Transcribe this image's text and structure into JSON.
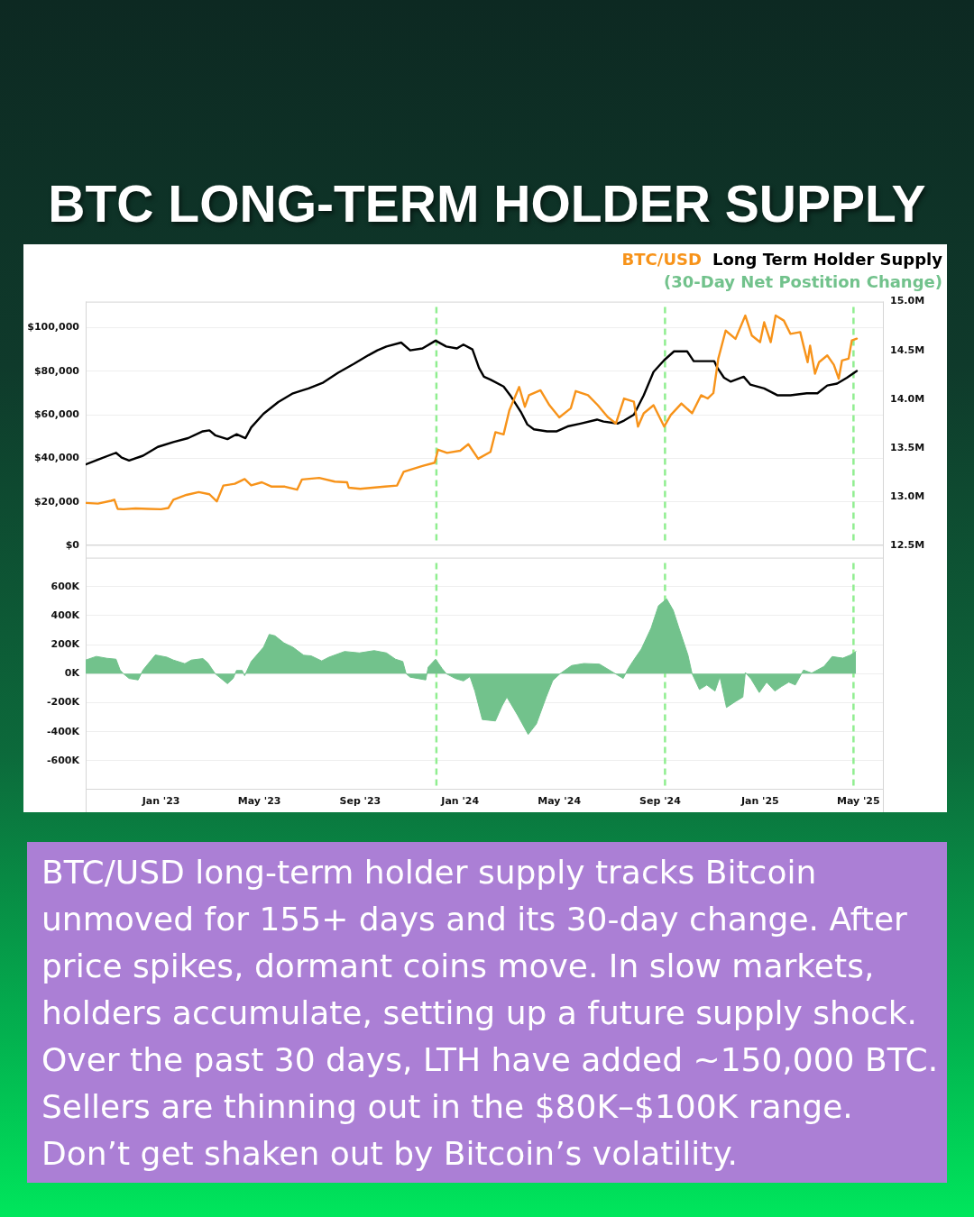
{
  "chart_data": [
    {
      "type": "line",
      "title": "BTC LONG-TERM HOLDER SUPPLY",
      "xlim": [
        "2022-10-01",
        "2025-06-01"
      ],
      "ylim": [
        0,
        112000
      ],
      "yticks": [
        {
          "value": 0,
          "label": "$0"
        },
        {
          "value": 20000,
          "label": "$20,000"
        },
        {
          "value": 40000,
          "label": "$40,000"
        },
        {
          "value": 60000,
          "label": "$60,000"
        },
        {
          "value": 80000,
          "label": "$80,000"
        },
        {
          "value": 100000,
          "label": "$100,000"
        }
      ],
      "y2lim": [
        12500000,
        15000000
      ],
      "y2ticks": [
        {
          "value": 12500000,
          "label": "12.5M"
        },
        {
          "value": 13000000,
          "label": "13.0M"
        },
        {
          "value": 13500000,
          "label": "13.5M"
        },
        {
          "value": 14000000,
          "label": "14.0M"
        },
        {
          "value": 14500000,
          "label": "14.5M"
        },
        {
          "value": 15000000,
          "label": "15.0M"
        }
      ],
      "tick_labels": "y",
      "grid": "y",
      "legend": "top right",
      "ref_lines": [
        {
          "axis": "x",
          "value": "2023-12-03",
          "color": "#90ee90",
          "line_style": "dashed"
        },
        {
          "axis": "x",
          "value": "2024-09-07",
          "color": "#90ee90",
          "line_style": "dashed"
        },
        {
          "axis": "x",
          "value": "2025-04-25",
          "color": "#90ee90",
          "line_style": "dashed"
        }
      ],
      "series": [
        {
          "name": "BTC/USD",
          "color": "#f7931a",
          "x": [
            "2022-10-01",
            "2022-10-16",
            "2022-11-01",
            "2022-11-05",
            "2022-11-09",
            "2022-11-16",
            "2022-12-01",
            "2022-12-16",
            "2023-01-01",
            "2023-01-10",
            "2023-01-16",
            "2023-02-01",
            "2023-02-16",
            "2023-03-01",
            "2023-03-10",
            "2023-03-18",
            "2023-04-01",
            "2023-04-13",
            "2023-04-21",
            "2023-05-04",
            "2023-05-16",
            "2023-06-01",
            "2023-06-16",
            "2023-06-22",
            "2023-07-13",
            "2023-08-01",
            "2023-08-16",
            "2023-08-18",
            "2023-09-01",
            "2023-09-16",
            "2023-10-01",
            "2023-10-16",
            "2023-10-24",
            "2023-11-16",
            "2023-12-01",
            "2023-12-05",
            "2023-12-16",
            "2024-01-01",
            "2024-01-11",
            "2024-01-23",
            "2024-02-07",
            "2024-02-13",
            "2024-02-23",
            "2024-03-01",
            "2024-03-13",
            "2024-03-20",
            "2024-03-25",
            "2024-04-08",
            "2024-04-19",
            "2024-05-01",
            "2024-05-15",
            "2024-05-21",
            "2024-06-05",
            "2024-06-17",
            "2024-06-29",
            "2024-07-09",
            "2024-07-19",
            "2024-07-31",
            "2024-08-05",
            "2024-08-12",
            "2024-08-24",
            "2024-09-06",
            "2024-09-14",
            "2024-09-27",
            "2024-10-10",
            "2024-10-21",
            "2024-10-29",
            "2024-11-05",
            "2024-11-11",
            "2024-11-20",
            "2024-12-02",
            "2024-12-14",
            "2024-12-22",
            "2025-01-01",
            "2025-01-06",
            "2025-01-14",
            "2025-01-20",
            "2025-01-30",
            "2025-02-07",
            "2025-02-19",
            "2025-02-23",
            "2025-02-28",
            "2025-03-03",
            "2025-03-09",
            "2025-03-14",
            "2025-03-24",
            "2025-04-01",
            "2025-04-07",
            "2025-04-11",
            "2025-04-19",
            "2025-04-23",
            "2025-04-29"
          ],
          "values": [
            19500,
            19200,
            20500,
            21000,
            16800,
            16600,
            17000,
            16800,
            16600,
            17200,
            21000,
            23200,
            24500,
            23500,
            20200,
            27500,
            28300,
            30500,
            27600,
            29000,
            27000,
            27000,
            25600,
            30300,
            31000,
            29300,
            29000,
            26500,
            26000,
            26500,
            27000,
            27500,
            33800,
            36500,
            38000,
            44000,
            42500,
            43500,
            46500,
            39800,
            43000,
            52000,
            51000,
            62000,
            72800,
            63700,
            69000,
            71300,
            64400,
            58800,
            63000,
            70900,
            69000,
            64400,
            59000,
            56000,
            67500,
            66000,
            54600,
            60700,
            64400,
            54600,
            59900,
            65200,
            60700,
            69000,
            67500,
            70000,
            85800,
            98700,
            94900,
            105600,
            96400,
            93400,
            102500,
            93400,
            105600,
            103300,
            97200,
            98000,
            91800,
            84200,
            91800,
            78900,
            84200,
            87300,
            83000,
            76600,
            85000,
            85800,
            94200,
            95000
          ]
        },
        {
          "name": "Long Term Holder Supply",
          "color": "#000000",
          "axis": "y2",
          "x": [
            "2022-10-01",
            "2022-10-16",
            "2022-11-07",
            "2022-11-14",
            "2022-11-23",
            "2022-12-10",
            "2022-12-28",
            "2023-01-16",
            "2023-02-03",
            "2023-02-21",
            "2023-03-01",
            "2023-03-08",
            "2023-03-23",
            "2023-04-03",
            "2023-04-14",
            "2023-04-21",
            "2023-05-06",
            "2023-05-24",
            "2023-06-11",
            "2023-06-22",
            "2023-06-30",
            "2023-07-18",
            "2023-08-05",
            "2023-08-24",
            "2023-09-11",
            "2023-09-22",
            "2023-10-03",
            "2023-10-21",
            "2023-11-01",
            "2023-11-16",
            "2023-12-02",
            "2023-12-15",
            "2023-12-28",
            "2024-01-05",
            "2024-01-16",
            "2024-01-24",
            "2024-01-30",
            "2024-02-07",
            "2024-02-23",
            "2024-03-02",
            "2024-03-15",
            "2024-03-23",
            "2024-03-31",
            "2024-04-16",
            "2024-04-28",
            "2024-05-11",
            "2024-05-27",
            "2024-06-16",
            "2024-06-24",
            "2024-07-11",
            "2024-07-19",
            "2024-07-31",
            "2024-08-12",
            "2024-08-24",
            "2024-09-06",
            "2024-09-18",
            "2024-10-04",
            "2024-10-12",
            "2024-10-24",
            "2024-11-06",
            "2024-11-10",
            "2024-11-18",
            "2024-11-26",
            "2024-12-12",
            "2024-12-20",
            "2025-01-06",
            "2025-01-22",
            "2025-02-07",
            "2025-02-27",
            "2025-03-12",
            "2025-03-24",
            "2025-04-05",
            "2025-04-17",
            "2025-04-29"
          ],
          "values": [
            13330000,
            13380000,
            13450000,
            13400000,
            13370000,
            13420000,
            13510000,
            13560000,
            13600000,
            13670000,
            13680000,
            13630000,
            13590000,
            13640000,
            13600000,
            13710000,
            13850000,
            13970000,
            14060000,
            14090000,
            14110000,
            14170000,
            14270000,
            14360000,
            14450000,
            14500000,
            14540000,
            14580000,
            14500000,
            14520000,
            14600000,
            14540000,
            14520000,
            14560000,
            14510000,
            14320000,
            14230000,
            14200000,
            14130000,
            14040000,
            13870000,
            13740000,
            13690000,
            13670000,
            13670000,
            13720000,
            13750000,
            13790000,
            13770000,
            13750000,
            13780000,
            13840000,
            14040000,
            14280000,
            14400000,
            14490000,
            14490000,
            14390000,
            14390000,
            14390000,
            14320000,
            14220000,
            14180000,
            14230000,
            14150000,
            14110000,
            14040000,
            14040000,
            14060000,
            14060000,
            14140000,
            14160000,
            14220000,
            14290000
          ]
        }
      ]
    },
    {
      "type": "area",
      "xlim": [
        "2022-10-01",
        "2025-06-01"
      ],
      "xticks": [
        {
          "value": "2023-01-01",
          "label": "Jan '23"
        },
        {
          "value": "2023-05-01",
          "label": "May '23"
        },
        {
          "value": "2023-09-01",
          "label": "Sep '23"
        },
        {
          "value": "2024-01-01",
          "label": "Jan '24"
        },
        {
          "value": "2024-05-01",
          "label": "May '24"
        },
        {
          "value": "2024-09-01",
          "label": "Sep '24"
        },
        {
          "value": "2025-01-01",
          "label": "Jan '25"
        },
        {
          "value": "2025-05-01",
          "label": "May '25"
        }
      ],
      "ylim": [
        -800000,
        800000
      ],
      "yticks": [
        {
          "value": -600000,
          "label": "-600K"
        },
        {
          "value": -400000,
          "label": "-400K"
        },
        {
          "value": -200000,
          "label": "-200K"
        },
        {
          "value": 0,
          "label": "0K"
        },
        {
          "value": 200000,
          "label": "200K"
        },
        {
          "value": 400000,
          "label": "400K"
        },
        {
          "value": 600000,
          "label": "600K"
        }
      ],
      "grid": "y",
      "legend": "top right",
      "ref_lines": [
        {
          "axis": "x",
          "value": "2023-12-03",
          "color": "#90ee90",
          "line_style": "dashed"
        },
        {
          "axis": "x",
          "value": "2024-09-07",
          "color": "#90ee90",
          "line_style": "dashed"
        },
        {
          "axis": "x",
          "value": "2025-04-25",
          "color": "#90ee90",
          "line_style": "dashed"
        }
      ],
      "series": [
        {
          "name": "(30-Day Net Postition Change)",
          "color": "#72c28c",
          "x": [
            "2022-10-01",
            "2022-10-14",
            "2022-10-27",
            "2022-11-07",
            "2022-11-12",
            "2022-11-16",
            "2022-11-23",
            "2022-12-04",
            "2022-12-10",
            "2022-12-25",
            "2023-01-08",
            "2023-01-16",
            "2023-01-30",
            "2023-02-07",
            "2023-02-21",
            "2023-02-27",
            "2023-03-08",
            "2023-03-23",
            "2023-03-30",
            "2023-04-03",
            "2023-04-10",
            "2023-04-13",
            "2023-04-21",
            "2023-05-06",
            "2023-05-13",
            "2023-05-20",
            "2023-05-31",
            "2023-06-11",
            "2023-06-24",
            "2023-07-03",
            "2023-07-16",
            "2023-07-25",
            "2023-08-13",
            "2023-08-31",
            "2023-09-18",
            "2023-10-03",
            "2023-10-14",
            "2023-10-23",
            "2023-10-27",
            "2023-11-01",
            "2023-11-20",
            "2023-11-23",
            "2023-12-02",
            "2023-12-10",
            "2023-12-15",
            "2023-12-26",
            "2024-01-05",
            "2024-01-13",
            "2024-01-19",
            "2024-01-28",
            "2024-02-13",
            "2024-02-21",
            "2024-02-27",
            "2024-03-11",
            "2024-03-24",
            "2024-04-03",
            "2024-04-15",
            "2024-04-23",
            "2024-05-02",
            "2024-05-16",
            "2024-05-31",
            "2024-06-19",
            "2024-07-01",
            "2024-07-10",
            "2024-07-18",
            "2024-07-24",
            "2024-07-30",
            "2024-08-09",
            "2024-08-21",
            "2024-08-30",
            "2024-09-09",
            "2024-09-17",
            "2024-09-24",
            "2024-10-05",
            "2024-10-10",
            "2024-10-19",
            "2024-10-28",
            "2024-11-07",
            "2024-11-13",
            "2024-11-21",
            "2024-12-02",
            "2024-12-11",
            "2024-12-14",
            "2024-12-21",
            "2024-12-31",
            "2025-01-09",
            "2025-01-19",
            "2025-01-27",
            "2025-02-05",
            "2025-02-13",
            "2025-02-23",
            "2025-03-05",
            "2025-03-20",
            "2025-03-30",
            "2025-04-12",
            "2025-04-21",
            "2025-04-28"
          ],
          "values": [
            94000,
            119000,
            106000,
            100000,
            25000,
            0,
            -33000,
            -43000,
            25000,
            129000,
            114000,
            94000,
            69000,
            94000,
            104000,
            75000,
            0,
            -69000,
            -33000,
            22000,
            22000,
            -14000,
            84000,
            182000,
            271000,
            261000,
            212000,
            182000,
            127000,
            123000,
            88000,
            114000,
            153000,
            143000,
            159000,
            143000,
            100000,
            84000,
            0,
            -24000,
            -43000,
            45000,
            100000,
            35000,
            0,
            -33000,
            -50000,
            -20000,
            -120000,
            -316000,
            -326000,
            -223000,
            -161000,
            -285000,
            -419000,
            -347000,
            -161000,
            -47000,
            0,
            56000,
            70000,
            66000,
            25000,
            -6000,
            -33000,
            35000,
            87000,
            169000,
            314000,
            468000,
            516000,
            437000,
            314000,
            128000,
            0,
            -109000,
            -78000,
            -120000,
            -21000,
            -233000,
            -192000,
            -161000,
            8000,
            -37000,
            -130000,
            -58000,
            -120000,
            -89000,
            -58000,
            -78000,
            25000,
            4000,
            50000,
            118000,
            107000,
            128000,
            153000
          ]
        }
      ],
      "annotations": [
        "BTC/USD long-term holder supply tracks Bitcoin unmoved for 155+ days and its 30-day change. After price spikes, dormant coins move. In slow markets, holders accumulate, setting up a future supply shock. Over the past 30 days, LTH have added ~150,000 BTC. Sellers are thinning out in the $80K–$100K range. Don’t get shaken out by Bitcoin’s volatility."
      ]
    }
  ]
}
